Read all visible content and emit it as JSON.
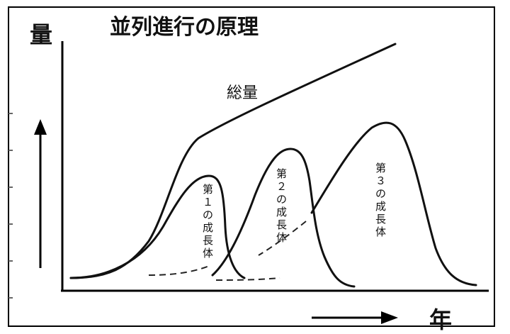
{
  "title": "並列進行の原理",
  "y_label": "量",
  "x_label": "年",
  "total_label": "総量",
  "bodies": [
    {
      "chars": [
        "第",
        "１",
        "の",
        "成",
        "長",
        "体"
      ]
    },
    {
      "chars": [
        "第",
        "２",
        "の",
        "成",
        "長",
        "体"
      ]
    },
    {
      "chars": [
        "第",
        "３",
        "の",
        "成",
        "長",
        "体"
      ]
    }
  ],
  "colors": {
    "line": "#111111",
    "background": "#ffffff"
  }
}
